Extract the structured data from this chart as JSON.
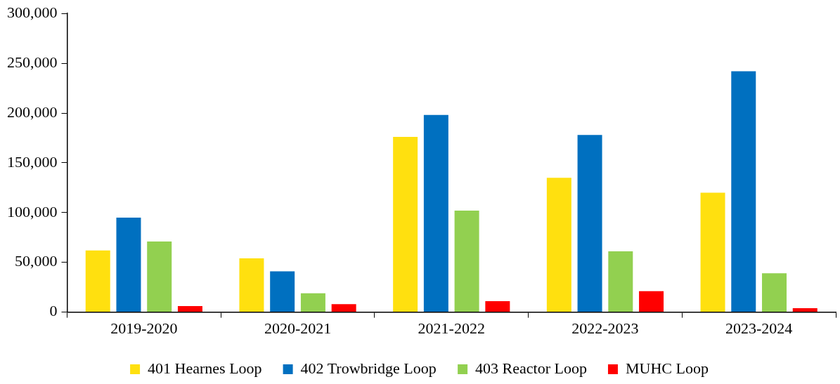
{
  "chart_data": {
    "type": "bar",
    "categories": [
      "2019-2020",
      "2020-2021",
      "2021-2022",
      "2022-2023",
      "2023-2024"
    ],
    "series": [
      {
        "name": "401 Hearnes Loop",
        "color": "#ffe00f",
        "values": [
          62000,
          54000,
          176000,
          135000,
          120000
        ]
      },
      {
        "name": "402 Trowbridge Loop",
        "color": "#0070c0",
        "values": [
          95000,
          41000,
          198000,
          178000,
          242000
        ]
      },
      {
        "name": "403 Reactor Loop",
        "color": "#92d050",
        "values": [
          71000,
          19000,
          102000,
          61000,
          39000
        ]
      },
      {
        "name": "MUHC Loop",
        "color": "#ff0000",
        "values": [
          6000,
          8000,
          11000,
          21000,
          4000
        ]
      }
    ],
    "ylim": [
      0,
      300000
    ],
    "yticks": [
      {
        "value": 0,
        "label": "0"
      },
      {
        "value": 50000,
        "label": "50,000"
      },
      {
        "value": 100000,
        "label": "100,000"
      },
      {
        "value": 150000,
        "label": "150,000"
      },
      {
        "value": 200000,
        "label": "200,000"
      },
      {
        "value": 250000,
        "label": "250,000"
      },
      {
        "value": 300000,
        "label": "300,000"
      }
    ],
    "grid": false,
    "legend": "bottom"
  }
}
